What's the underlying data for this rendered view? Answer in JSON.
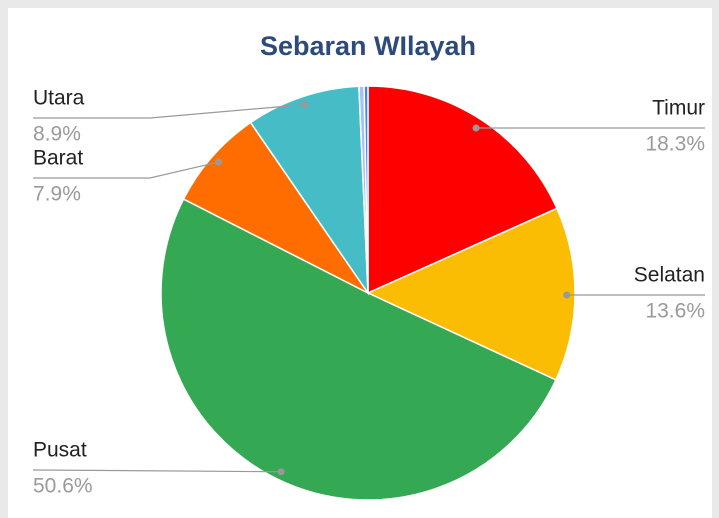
{
  "chart_data": {
    "type": "pie",
    "title": "Sebaran WIlayah",
    "categories": [
      "Timur",
      "Selatan",
      "Pusat",
      "Barat",
      "Utara",
      null,
      null
    ],
    "values": [
      18.3,
      13.6,
      50.6,
      7.9,
      8.9,
      0.4,
      0.3
    ],
    "value_labels": [
      "18.3%",
      "13.6%",
      "50.6%",
      "7.9%",
      "8.9%",
      null,
      null
    ],
    "colors": [
      "#ff0000",
      "#fbbc04",
      "#34a853",
      "#ff6d01",
      "#46bdc6",
      "#a4c2f4",
      "#4285f4"
    ]
  }
}
